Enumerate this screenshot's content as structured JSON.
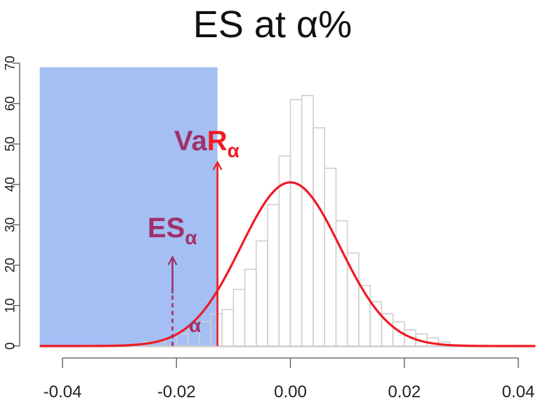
{
  "title": "ES at α%",
  "chart_data": {
    "type": "bar",
    "title": "ES at α%",
    "xlim": [
      -0.044,
      0.043
    ],
    "ylim": [
      0,
      70
    ],
    "x_ticks": [
      -0.04,
      -0.02,
      0.0,
      0.02,
      0.04
    ],
    "x_tick_labels": [
      "-0.04",
      "-0.02",
      "0.00",
      "0.02",
      "0.04"
    ],
    "y_ticks": [
      0,
      10,
      20,
      30,
      40,
      50,
      60,
      70
    ],
    "y_tick_labels": [
      "0",
      "10",
      "20",
      "30",
      "40",
      "50",
      "60",
      "70"
    ],
    "histogram": {
      "bin_width": 0.002,
      "bins_start": [
        -0.026,
        -0.024,
        -0.022,
        -0.02,
        -0.018,
        -0.016,
        -0.014,
        -0.012,
        -0.01,
        -0.008,
        -0.006,
        -0.004,
        -0.002,
        0.0,
        0.002,
        0.004,
        0.006,
        0.008,
        0.01,
        0.012,
        0.014,
        0.016,
        0.018,
        0.02,
        0.022,
        0.024,
        0.026
      ],
      "counts": [
        1,
        1,
        2,
        3,
        4,
        6,
        8,
        9,
        14,
        19,
        26,
        35,
        47,
        61,
        62,
        54,
        44,
        31,
        23,
        15,
        11,
        8,
        6,
        4,
        3,
        2,
        1
      ]
    },
    "density_curve": {
      "type": "normal",
      "mean": 0.0,
      "peak": 40.5,
      "sd": 0.0087,
      "color": "#ee1c25"
    },
    "shaded_region": {
      "x_from": -0.044,
      "x_to": -0.0128,
      "y_top": 69,
      "color": "#a4bff4"
    },
    "annotations": {
      "var": {
        "label_main": "VaR",
        "label_sub": "α",
        "x": -0.0128,
        "arrow_top": 45.5,
        "color": "#ee1c25"
      },
      "es": {
        "label_main": "ES",
        "label_sub": "α",
        "x": -0.0207,
        "arrow_top": 22,
        "color": "#a0306a"
      },
      "alpha": {
        "label": "α",
        "x": -0.0165,
        "y": 3.5,
        "color": "#a0306a"
      }
    },
    "grid": false,
    "legend": "none"
  }
}
